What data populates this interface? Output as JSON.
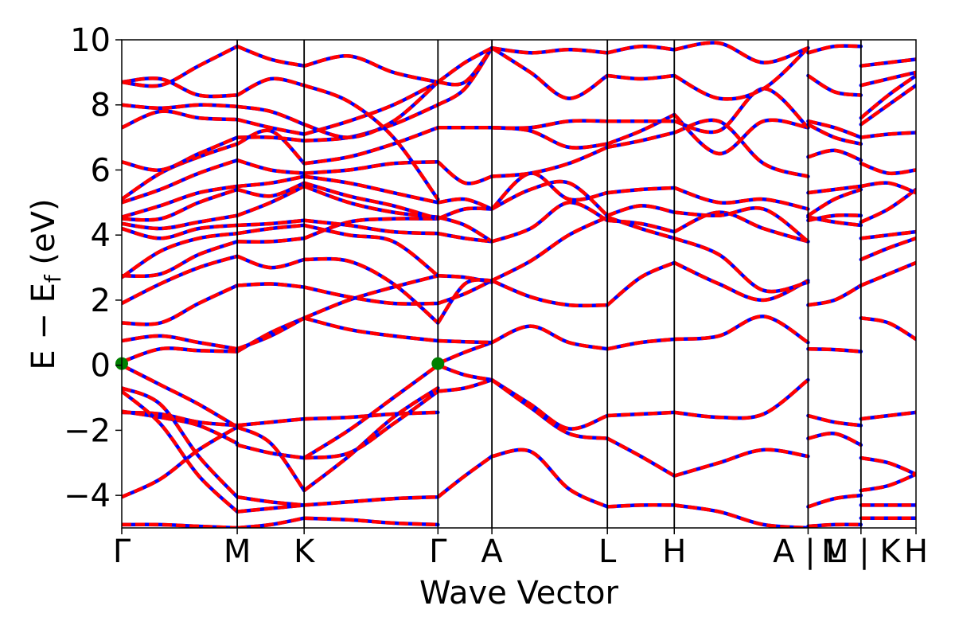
{
  "chart_data": {
    "type": "line",
    "title": "",
    "xlabel": "Wave Vector",
    "ylabel_main": "E − E",
    "ylabel_sub": "f",
    "ylabel_unit": " (eV)",
    "ylim": [
      -5,
      10
    ],
    "yticks": [
      -4,
      -2,
      0,
      2,
      4,
      6,
      8,
      10
    ],
    "ytick_labels": [
      "−4",
      "−2",
      "0",
      "2",
      "4",
      "6",
      "8",
      "10"
    ],
    "xlim": [
      0,
      7.36
    ],
    "kpath": [
      {
        "label": "Γ",
        "x": 0.0
      },
      {
        "label": "M",
        "x": 1.07
      },
      {
        "label": "K",
        "x": 1.69
      },
      {
        "label": "Γ",
        "x": 2.93
      },
      {
        "label": "A",
        "x": 3.43
      },
      {
        "label": "L",
        "x": 4.5
      },
      {
        "label": "H",
        "x": 5.12
      },
      {
        "label": "A | L",
        "x": 6.36
      },
      {
        "label": "M | K",
        "x": 6.85
      },
      {
        "label": "H",
        "x": 7.36
      }
    ],
    "vlines": [
      1.07,
      1.69,
      2.93,
      3.43,
      4.5,
      5.12,
      6.36,
      6.85
    ],
    "series_styles": [
      {
        "color": "#0000ff",
        "style": "solid"
      },
      {
        "color": "#ff0000",
        "style": "dashed"
      }
    ],
    "markers": [
      {
        "x": 0.0,
        "y": 0.05,
        "color": "#008000"
      },
      {
        "x": 2.93,
        "y": 0.05,
        "color": "#008000"
      }
    ],
    "segments": [
      {
        "x0": 0.0,
        "x1": 1.07,
        "bands": [
          [
            -4.9,
            -4.9,
            -4.95,
            -5.0
          ],
          [
            -4.05,
            -3.5,
            -2.6,
            -1.9
          ],
          [
            -1.45,
            -1.5,
            -1.75,
            -1.85
          ],
          [
            -1.42,
            -1.6,
            -1.85,
            -2.4
          ],
          [
            -0.8,
            -1.8,
            -3.4,
            -4.5
          ],
          [
            -0.7,
            -1.2,
            -2.8,
            -4.05
          ],
          [
            0.0,
            -0.6,
            -1.2,
            -1.9
          ],
          [
            0.1,
            0.5,
            0.45,
            0.42
          ],
          [
            0.75,
            0.9,
            0.7,
            0.5
          ],
          [
            1.3,
            1.3,
            1.9,
            2.45
          ],
          [
            1.9,
            2.5,
            3.0,
            3.35
          ],
          [
            2.75,
            2.8,
            3.4,
            3.8
          ],
          [
            2.7,
            3.5,
            3.9,
            4.05
          ],
          [
            4.2,
            3.9,
            4.2,
            4.3
          ],
          [
            4.35,
            4.2,
            4.4,
            4.6
          ],
          [
            4.5,
            4.5,
            5.0,
            5.4
          ],
          [
            4.55,
            4.9,
            5.3,
            5.5
          ],
          [
            5.0,
            5.4,
            5.9,
            6.3
          ],
          [
            5.1,
            5.9,
            6.4,
            6.8
          ],
          [
            6.25,
            6.0,
            6.5,
            7.0
          ],
          [
            7.3,
            7.8,
            7.6,
            7.55
          ],
          [
            8.0,
            7.9,
            8.0,
            7.95
          ],
          [
            8.7,
            8.8,
            8.3,
            8.3
          ],
          [
            8.7,
            8.6,
            9.2,
            9.8
          ]
        ]
      },
      {
        "x0": 1.07,
        "x1": 1.69,
        "bands": [
          [
            -5.0,
            -4.9,
            -4.7
          ],
          [
            -4.5,
            -4.4,
            -4.3
          ],
          [
            -4.05,
            -4.2,
            -4.3
          ],
          [
            -2.45,
            -2.7,
            -2.85
          ],
          [
            -1.85,
            -1.75,
            -1.65
          ],
          [
            -1.9,
            -2.4,
            -3.85
          ],
          [
            0.42,
            1.0,
            1.45
          ],
          [
            0.5,
            0.9,
            1.45
          ],
          [
            2.45,
            2.5,
            2.4
          ],
          [
            3.35,
            3.0,
            3.25
          ],
          [
            3.8,
            3.8,
            3.9
          ],
          [
            4.05,
            4.2,
            4.3
          ],
          [
            4.3,
            4.35,
            4.45
          ],
          [
            4.6,
            5.0,
            5.5
          ],
          [
            5.4,
            5.2,
            5.6
          ],
          [
            5.5,
            5.6,
            5.8
          ],
          [
            6.3,
            6.0,
            5.9
          ],
          [
            6.8,
            7.2,
            6.2
          ],
          [
            7.0,
            7.0,
            6.9
          ],
          [
            7.55,
            7.3,
            7.1
          ],
          [
            7.95,
            7.8,
            7.4
          ],
          [
            8.3,
            8.8,
            8.6
          ],
          [
            9.8,
            9.4,
            9.2
          ]
        ]
      },
      {
        "x0": 1.69,
        "x1": 2.93,
        "bands": [
          [
            -4.7,
            -4.75,
            -4.85,
            -4.9
          ],
          [
            -4.3,
            -4.2,
            -4.1,
            -4.05
          ],
          [
            -3.85,
            -2.8,
            -1.6,
            -0.7
          ],
          [
            -2.85,
            -2.0,
            -1.0,
            0.0
          ],
          [
            -1.65,
            -1.6,
            -1.5,
            -1.45
          ],
          [
            -2.85,
            -2.7,
            -1.8,
            -0.8
          ],
          [
            1.45,
            1.1,
            0.9,
            0.75
          ],
          [
            1.45,
            2.0,
            2.4,
            2.75
          ],
          [
            2.4,
            2.1,
            1.9,
            1.9
          ],
          [
            3.25,
            3.2,
            2.5,
            1.3
          ],
          [
            3.9,
            4.4,
            4.5,
            4.5
          ],
          [
            4.3,
            4.0,
            3.8,
            2.75
          ],
          [
            4.45,
            4.3,
            4.1,
            4.05
          ],
          [
            5.5,
            5.0,
            4.7,
            4.55
          ],
          [
            5.6,
            5.2,
            4.9,
            4.5
          ],
          [
            5.8,
            5.6,
            5.3,
            5.0
          ],
          [
            5.9,
            6.0,
            6.2,
            6.25
          ],
          [
            6.2,
            6.4,
            6.8,
            7.3
          ],
          [
            6.9,
            7.0,
            7.4,
            8.0
          ],
          [
            7.1,
            7.5,
            8.0,
            8.7
          ],
          [
            7.4,
            7.0,
            7.5,
            8.7
          ],
          [
            8.6,
            8.1,
            7.0,
            5.1
          ],
          [
            9.2,
            9.5,
            9.0,
            8.7
          ]
        ]
      },
      {
        "x0": 2.93,
        "x1": 3.43,
        "bands": [
          [
            -4.05,
            -3.4,
            -2.8
          ],
          [
            -0.8,
            -0.7,
            -0.45
          ],
          [
            0.0,
            -0.3,
            -0.45
          ],
          [
            0.05,
            0.4,
            0.7
          ],
          [
            0.75,
            0.72,
            0.7
          ],
          [
            1.9,
            2.2,
            2.6
          ],
          [
            2.75,
            2.7,
            2.55
          ],
          [
            1.3,
            2.5,
            2.6
          ],
          [
            4.05,
            3.9,
            3.8
          ],
          [
            4.55,
            4.3,
            3.8
          ],
          [
            4.5,
            4.8,
            4.8
          ],
          [
            5.0,
            5.1,
            4.8
          ],
          [
            6.25,
            5.6,
            5.8
          ],
          [
            7.3,
            7.3,
            7.3
          ],
          [
            8.0,
            8.5,
            9.75
          ],
          [
            8.7,
            8.7,
            9.75
          ],
          [
            8.7,
            9.3,
            9.75
          ]
        ]
      },
      {
        "x0": 3.43,
        "x1": 4.5,
        "bands": [
          [
            -2.8,
            -2.65,
            -3.8,
            -4.35
          ],
          [
            -0.45,
            -1.2,
            -1.95,
            -1.55
          ],
          [
            -0.45,
            -1.3,
            -2.1,
            -2.25
          ],
          [
            0.7,
            1.2,
            0.7,
            0.5
          ],
          [
            2.6,
            2.1,
            1.85,
            1.85
          ],
          [
            2.6,
            3.2,
            4.0,
            4.55
          ],
          [
            3.8,
            4.2,
            5.0,
            4.45
          ],
          [
            4.8,
            5.4,
            5.6,
            4.6
          ],
          [
            4.8,
            5.9,
            5.1,
            5.3
          ],
          [
            5.8,
            5.9,
            6.2,
            6.7
          ],
          [
            7.3,
            7.2,
            6.7,
            6.8
          ],
          [
            7.3,
            7.3,
            7.5,
            7.5
          ],
          [
            9.75,
            9.0,
            8.2,
            8.9
          ],
          [
            9.75,
            9.6,
            9.7,
            9.6
          ]
        ]
      },
      {
        "x0": 4.5,
        "x1": 5.12,
        "bands": [
          [
            -4.35,
            -4.3,
            -4.3
          ],
          [
            -1.55,
            -1.5,
            -1.45
          ],
          [
            -2.25,
            -2.8,
            -3.4
          ],
          [
            0.5,
            0.7,
            0.8
          ],
          [
            1.85,
            2.7,
            3.15
          ],
          [
            4.55,
            4.2,
            3.9
          ],
          [
            4.45,
            4.35,
            4.1
          ],
          [
            4.6,
            4.9,
            4.7
          ],
          [
            5.3,
            5.4,
            5.45
          ],
          [
            6.7,
            6.9,
            7.15
          ],
          [
            6.8,
            7.2,
            7.7
          ],
          [
            7.5,
            7.5,
            7.5
          ],
          [
            8.9,
            8.8,
            8.9
          ],
          [
            9.6,
            9.8,
            9.7
          ]
        ]
      },
      {
        "x0": 5.12,
        "x1": 6.36,
        "bands": [
          [
            -4.3,
            -4.5,
            -4.9,
            -5.0
          ],
          [
            -1.45,
            -1.6,
            -1.5,
            -0.45
          ],
          [
            -3.4,
            -3.0,
            -2.6,
            -2.8
          ],
          [
            0.8,
            0.9,
            1.5,
            0.7
          ],
          [
            3.15,
            2.5,
            2.0,
            2.6
          ],
          [
            3.9,
            3.4,
            2.3,
            2.55
          ],
          [
            4.1,
            4.7,
            4.2,
            3.8
          ],
          [
            4.7,
            4.6,
            4.8,
            3.8
          ],
          [
            5.45,
            5.0,
            5.1,
            4.8
          ],
          [
            7.15,
            7.5,
            6.2,
            5.8
          ],
          [
            7.7,
            6.5,
            7.5,
            7.3
          ],
          [
            7.5,
            7.2,
            8.5,
            7.3
          ],
          [
            8.9,
            8.2,
            8.5,
            9.75
          ],
          [
            9.7,
            9.9,
            9.3,
            9.75
          ]
        ]
      },
      {
        "x0": 6.36,
        "x1": 6.85,
        "bands": [
          [
            -4.35,
            -4.1,
            -4.0
          ],
          [
            -4.95,
            -4.9,
            -4.9
          ],
          [
            -1.55,
            -1.75,
            -1.85
          ],
          [
            -2.25,
            -2.1,
            -2.45
          ],
          [
            0.5,
            0.48,
            0.42
          ],
          [
            1.85,
            2.0,
            2.45
          ],
          [
            4.55,
            4.4,
            4.3
          ],
          [
            4.45,
            4.6,
            4.6
          ],
          [
            4.6,
            5.1,
            5.4
          ],
          [
            5.3,
            5.4,
            5.5
          ],
          [
            6.4,
            6.6,
            6.3
          ],
          [
            7.4,
            7.0,
            6.8
          ],
          [
            7.5,
            7.3,
            7.0
          ],
          [
            8.9,
            8.4,
            8.3
          ],
          [
            9.6,
            9.8,
            9.8
          ]
        ]
      },
      {
        "x0": 6.85,
        "x1": 7.36,
        "bands": [
          [
            -4.3,
            -4.3,
            -4.3
          ],
          [
            -4.7,
            -4.7,
            -4.7
          ],
          [
            -3.85,
            -3.7,
            -3.35
          ],
          [
            -2.85,
            -3.0,
            -3.35
          ],
          [
            -1.65,
            -1.55,
            -1.45
          ],
          [
            1.45,
            1.3,
            0.8
          ],
          [
            2.45,
            2.8,
            3.15
          ],
          [
            3.25,
            3.6,
            3.9
          ],
          [
            3.9,
            4.0,
            4.1
          ],
          [
            4.4,
            4.8,
            5.4
          ],
          [
            5.5,
            5.6,
            5.3
          ],
          [
            6.2,
            5.9,
            6.0
          ],
          [
            7.0,
            7.1,
            7.15
          ],
          [
            7.4,
            8.0,
            8.6
          ],
          [
            7.6,
            8.3,
            8.9
          ],
          [
            8.6,
            8.8,
            9.0
          ],
          [
            9.2,
            9.3,
            9.4
          ]
        ]
      }
    ]
  }
}
